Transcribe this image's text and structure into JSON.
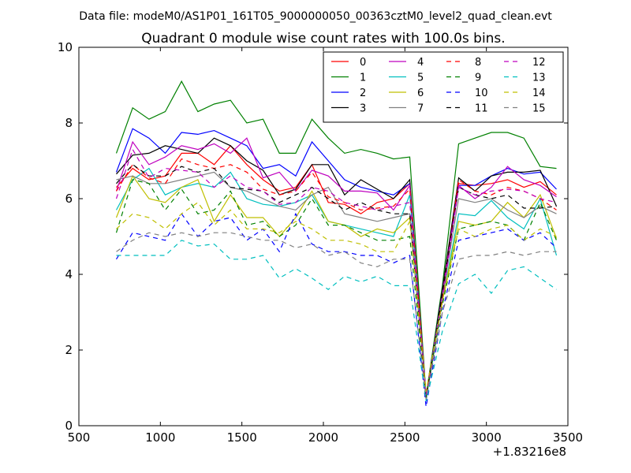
{
  "chart_data": {
    "type": "line",
    "file_label": "Data file: modeM0/AS1P01_161T05_9000000050_00363cztM0_level2_quad_clean.evt",
    "title": "Quadrant 0 module wise count rates with 100.0s bins.",
    "xlabel": "",
    "ylabel": "",
    "x_offset_label": "+1.83216e8",
    "xlim": [
      500,
      3500
    ],
    "ylim": [
      0,
      10
    ],
    "xticks": [
      500,
      1000,
      1500,
      2000,
      2500,
      3000,
      3500
    ],
    "yticks": [
      0,
      2,
      4,
      6,
      8,
      10
    ],
    "legend_position": "top-right",
    "x": [
      730,
      830,
      930,
      1030,
      1130,
      1230,
      1330,
      1430,
      1530,
      1630,
      1730,
      1830,
      1930,
      2030,
      2130,
      2230,
      2330,
      2430,
      2530,
      2630,
      2730,
      2830,
      2930,
      3030,
      3130,
      3230,
      3330,
      3430
    ],
    "series": [
      {
        "name": "0",
        "color": "#ff0000",
        "style": "solid",
        "values": [
          6.3,
          6.8,
          6.5,
          6.6,
          7.2,
          7.2,
          6.9,
          7.4,
          6.9,
          6.5,
          6.2,
          6.3,
          6.9,
          5.9,
          5.85,
          5.6,
          5.9,
          6.0,
          6.4,
          0.75,
          3.5,
          6.4,
          6.35,
          6.4,
          6.5,
          6.3,
          6.45,
          6.1
        ]
      },
      {
        "name": "1",
        "color": "#008000",
        "style": "solid",
        "values": [
          7.2,
          8.4,
          8.1,
          8.3,
          9.1,
          8.3,
          8.5,
          8.6,
          8.0,
          8.1,
          7.2,
          7.2,
          8.1,
          7.6,
          7.2,
          7.3,
          7.2,
          7.05,
          7.1,
          0.8,
          3.7,
          7.45,
          7.6,
          7.75,
          7.75,
          7.6,
          6.85,
          6.8
        ]
      },
      {
        "name": "2",
        "color": "#0000ff",
        "style": "solid",
        "values": [
          6.7,
          7.85,
          7.6,
          7.2,
          7.75,
          7.7,
          7.8,
          7.6,
          7.4,
          6.8,
          6.9,
          6.6,
          7.5,
          7.0,
          6.5,
          6.3,
          6.2,
          6.1,
          6.4,
          0.7,
          3.6,
          6.35,
          6.35,
          6.6,
          6.8,
          6.65,
          6.7,
          6.25
        ]
      },
      {
        "name": "3",
        "color": "#000000",
        "style": "solid",
        "values": [
          6.65,
          7.15,
          7.2,
          7.4,
          7.3,
          7.2,
          7.6,
          7.4,
          7.0,
          6.75,
          6.1,
          6.25,
          6.9,
          6.9,
          6.1,
          6.5,
          6.25,
          6.0,
          6.5,
          0.7,
          3.6,
          6.55,
          6.2,
          6.6,
          6.7,
          6.7,
          6.75,
          5.8
        ]
      },
      {
        "name": "4",
        "color": "#bf00bf",
        "style": "solid",
        "values": [
          6.2,
          7.5,
          6.9,
          7.1,
          7.4,
          7.3,
          7.45,
          7.2,
          7.6,
          6.55,
          6.7,
          6.2,
          6.75,
          6.6,
          6.2,
          6.2,
          6.15,
          5.7,
          6.35,
          0.75,
          3.5,
          6.35,
          6.0,
          6.3,
          6.85,
          6.5,
          6.35,
          6.05
        ]
      },
      {
        "name": "5",
        "color": "#00bfbf",
        "style": "solid",
        "values": [
          5.7,
          6.5,
          6.8,
          6.1,
          6.3,
          6.4,
          6.3,
          6.7,
          6.0,
          5.85,
          5.8,
          5.9,
          6.1,
          5.4,
          5.3,
          5.2,
          5.1,
          5.0,
          6.1,
          0.7,
          3.3,
          5.6,
          5.55,
          5.95,
          5.5,
          5.2,
          6.0,
          4.5
        ]
      },
      {
        "name": "6",
        "color": "#bfbf00",
        "style": "solid",
        "values": [
          5.5,
          6.6,
          6.0,
          5.9,
          6.3,
          6.5,
          5.4,
          6.1,
          5.5,
          5.5,
          5.0,
          5.5,
          6.2,
          5.4,
          5.3,
          5.0,
          5.2,
          5.1,
          5.5,
          0.8,
          3.3,
          5.4,
          5.3,
          5.4,
          5.9,
          5.5,
          6.1,
          4.95
        ]
      },
      {
        "name": "7",
        "color": "#808080",
        "style": "solid",
        "values": [
          6.5,
          6.6,
          6.4,
          6.4,
          6.5,
          6.6,
          6.7,
          6.3,
          6.2,
          6.0,
          5.8,
          5.7,
          6.1,
          6.3,
          5.6,
          5.5,
          5.4,
          5.5,
          5.6,
          0.75,
          3.4,
          6.0,
          5.9,
          6.0,
          5.7,
          5.5,
          5.8,
          5.6
        ]
      },
      {
        "name": "8",
        "color": "#ff0000",
        "style": "dashed",
        "values": [
          6.2,
          6.9,
          6.55,
          6.4,
          7.05,
          6.9,
          6.8,
          6.9,
          6.7,
          6.25,
          6.1,
          6.2,
          6.7,
          6.05,
          5.9,
          5.7,
          5.75,
          5.8,
          6.25,
          0.8,
          3.4,
          6.5,
          6.2,
          6.1,
          6.3,
          6.2,
          6.0,
          5.7
        ]
      },
      {
        "name": "9",
        "color": "#008000",
        "style": "dashed",
        "values": [
          5.1,
          6.5,
          6.4,
          5.7,
          6.25,
          5.6,
          5.7,
          6.2,
          5.3,
          5.4,
          5.0,
          5.3,
          6.0,
          5.3,
          5.3,
          5.1,
          4.9,
          4.9,
          5.0,
          0.75,
          3.2,
          5.2,
          5.3,
          5.4,
          5.3,
          4.9,
          5.9,
          4.9
        ]
      },
      {
        "name": "10",
        "color": "#0000ff",
        "style": "dashed",
        "values": [
          4.4,
          5.1,
          5.0,
          4.9,
          5.6,
          5.0,
          5.4,
          5.5,
          4.9,
          5.2,
          4.6,
          5.6,
          4.8,
          4.6,
          4.6,
          4.5,
          4.5,
          4.3,
          4.5,
          0.5,
          3.0,
          4.9,
          5.0,
          5.1,
          5.2,
          4.9,
          5.1,
          4.7
        ]
      },
      {
        "name": "11",
        "color": "#000000",
        "style": "dashed",
        "values": [
          6.4,
          6.9,
          6.6,
          6.6,
          6.85,
          6.7,
          6.8,
          6.3,
          6.25,
          6.2,
          5.9,
          6.1,
          6.3,
          6.0,
          5.7,
          5.9,
          5.7,
          5.6,
          5.6,
          0.7,
          3.5,
          6.3,
          6.1,
          6.0,
          6.1,
          5.75,
          5.75,
          5.8
        ]
      },
      {
        "name": "12",
        "color": "#bf00bf",
        "style": "dashed",
        "values": [
          6.0,
          7.3,
          6.55,
          6.8,
          6.75,
          6.7,
          6.3,
          6.6,
          6.3,
          6.2,
          5.85,
          5.9,
          6.3,
          6.2,
          5.9,
          5.8,
          5.7,
          5.8,
          5.9,
          0.8,
          3.3,
          6.3,
          6.1,
          6.2,
          6.25,
          6.2,
          6.0,
          5.9
        ]
      },
      {
        "name": "13",
        "color": "#00bfbf",
        "style": "dashed",
        "values": [
          4.5,
          4.5,
          4.5,
          4.5,
          4.9,
          4.75,
          4.8,
          4.4,
          4.4,
          4.5,
          3.9,
          4.15,
          3.9,
          3.6,
          3.95,
          3.8,
          3.95,
          3.7,
          3.7,
          0.65,
          2.5,
          3.75,
          4.0,
          3.5,
          4.1,
          4.2,
          3.9,
          3.6
        ]
      },
      {
        "name": "14",
        "color": "#bfbf00",
        "style": "dashed",
        "values": [
          5.2,
          5.6,
          5.5,
          5.2,
          5.6,
          5.9,
          5.3,
          5.7,
          5.2,
          5.2,
          5.1,
          5.4,
          5.2,
          4.9,
          4.9,
          4.8,
          4.6,
          4.6,
          5.4,
          0.9,
          3.3,
          5.2,
          5.0,
          5.2,
          5.3,
          4.9,
          5.2,
          5.0
        ]
      },
      {
        "name": "15",
        "color": "#808080",
        "style": "dashed",
        "values": [
          4.6,
          4.9,
          5.1,
          5.0,
          5.1,
          5.0,
          5.1,
          5.1,
          5.0,
          4.9,
          4.9,
          4.7,
          4.8,
          4.5,
          4.6,
          4.3,
          4.2,
          4.4,
          4.4,
          0.7,
          3.0,
          4.4,
          4.5,
          4.5,
          4.6,
          4.5,
          4.6,
          4.6
        ]
      }
    ]
  }
}
